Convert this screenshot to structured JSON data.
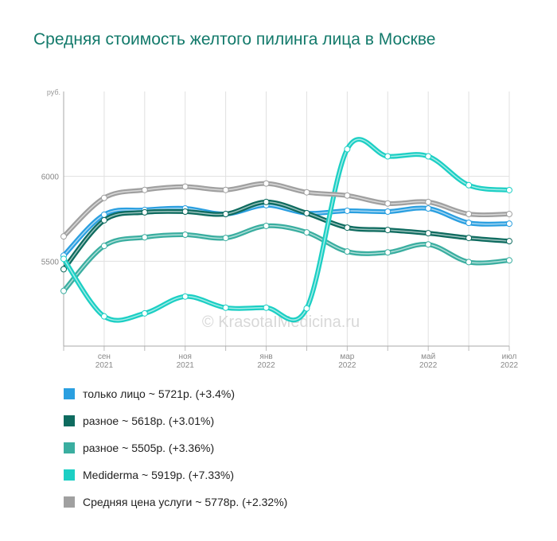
{
  "chart_data": {
    "type": "line",
    "title": "Средняя стоимость желтого пилинга лица в Москве",
    "y_unit": "руб.",
    "watermark": "© KrasotaIMedicina.ru",
    "categories": [
      null,
      {
        "month": "сен",
        "year": "2021"
      },
      null,
      {
        "month": "ноя",
        "year": "2021"
      },
      null,
      {
        "month": "янв",
        "year": "2022"
      },
      null,
      {
        "month": "мар",
        "year": "2022"
      },
      null,
      {
        "month": "май",
        "year": "2022"
      },
      null,
      {
        "month": "июл",
        "year": "2022"
      }
    ],
    "ylim": [
      5000,
      6500
    ],
    "yticks": [
      5500,
      6000
    ],
    "grid": true,
    "series": [
      {
        "name": "только лицо",
        "summary": "~ 5721р. (+3.4%)",
        "color": "#2a9fe0",
        "values": [
          5533,
          5774,
          5802,
          5811,
          5778,
          5830,
          5783,
          5797,
          5792,
          5811,
          5726,
          5721
        ]
      },
      {
        "name": "разное",
        "summary": "~ 5618р. (+3.01%)",
        "color": "#0e6b5f",
        "values": [
          5453,
          5741,
          5788,
          5792,
          5778,
          5849,
          5783,
          5698,
          5684,
          5665,
          5637,
          5618
        ]
      },
      {
        "name": "разное",
        "summary": "~ 5505р. (+3.36%)",
        "color": "#3aaea0",
        "values": [
          5325,
          5590,
          5641,
          5656,
          5637,
          5708,
          5670,
          5557,
          5552,
          5599,
          5495,
          5505
        ]
      },
      {
        "name": "Mediderma",
        "summary": "~ 5919р. (+7.33%)",
        "color": "#1ccfc4",
        "values": [
          5514,
          5175,
          5193,
          5292,
          5226,
          5226,
          5222,
          6160,
          6118,
          6118,
          5948,
          5919
        ]
      },
      {
        "name": "Средняя цена услуги",
        "summary": "~ 5778р. (+2.32%)",
        "color": "#a0a0a0",
        "values": [
          5646,
          5873,
          5920,
          5939,
          5920,
          5958,
          5906,
          5887,
          5840,
          5849,
          5778,
          5778
        ]
      }
    ]
  }
}
